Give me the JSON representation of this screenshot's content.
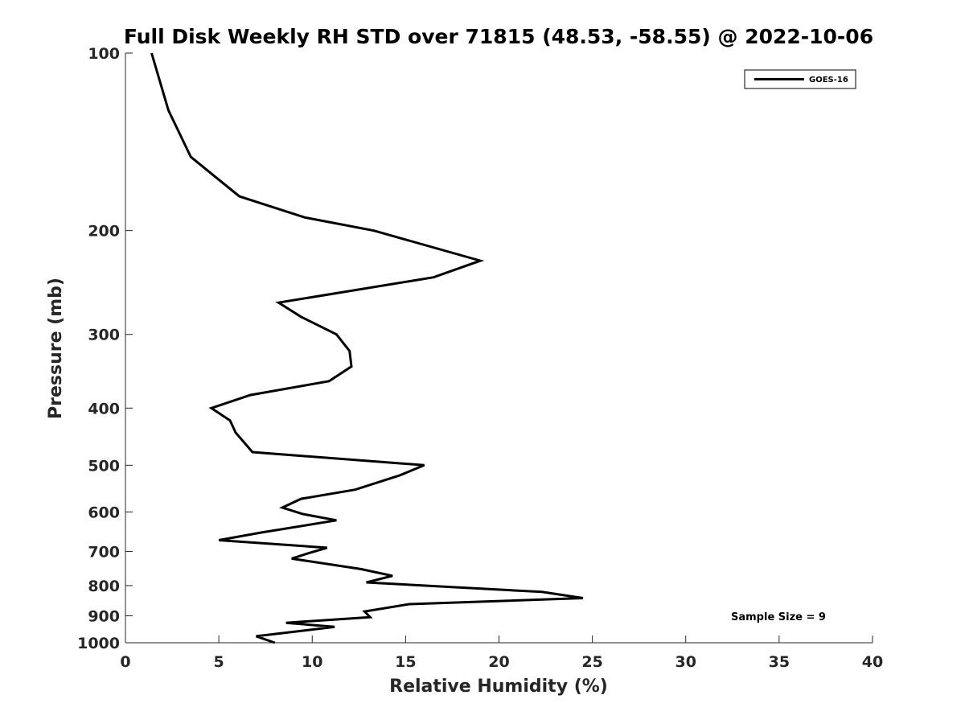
{
  "chart_data": {
    "type": "line",
    "title": "Full Disk Weekly RH STD over 71815 (48.53, -58.55) @ 2022-10-06",
    "xlabel": "Relative Humidity (%)",
    "ylabel": "Pressure (mb)",
    "xlim": [
      0,
      40
    ],
    "ylim": [
      100,
      1000
    ],
    "y_scale": "log",
    "y_reversed": true,
    "grid": false,
    "legend_position": "top-right",
    "x_ticks": [
      "0",
      "5",
      "10",
      "15",
      "20",
      "25",
      "30",
      "35",
      "40"
    ],
    "y_ticks": [
      "100",
      "200",
      "300",
      "400",
      "500",
      "600",
      "700",
      "800",
      "900",
      "1000"
    ],
    "annotation": "Sample Size = 9",
    "series": [
      {
        "name": "GOES-16",
        "color": "#000000",
        "points": [
          [
            1.4,
            100
          ],
          [
            2.3,
            125
          ],
          [
            3.5,
            150
          ],
          [
            6.1,
            175
          ],
          [
            9.6,
            190
          ],
          [
            13.3,
            200
          ],
          [
            19.0,
            225
          ],
          [
            16.5,
            240
          ],
          [
            8.2,
            265
          ],
          [
            9.4,
            280
          ],
          [
            11.3,
            300
          ],
          [
            12.0,
            320
          ],
          [
            12.1,
            340
          ],
          [
            10.9,
            360
          ],
          [
            6.7,
            380
          ],
          [
            4.6,
            400
          ],
          [
            5.6,
            420
          ],
          [
            5.9,
            440
          ],
          [
            6.8,
            475
          ],
          [
            16.0,
            500
          ],
          [
            14.7,
            520
          ],
          [
            12.3,
            550
          ],
          [
            9.4,
            570
          ],
          [
            8.4,
            590
          ],
          [
            9.5,
            605
          ],
          [
            11.3,
            620
          ],
          [
            7.3,
            650
          ],
          [
            5.0,
            670
          ],
          [
            10.8,
            690
          ],
          [
            9.8,
            705
          ],
          [
            8.9,
            720
          ],
          [
            12.6,
            750
          ],
          [
            14.3,
            770
          ],
          [
            12.9,
            790
          ],
          [
            22.3,
            820
          ],
          [
            24.5,
            840
          ],
          [
            15.2,
            860
          ],
          [
            12.8,
            885
          ],
          [
            13.1,
            905
          ],
          [
            8.6,
            925
          ],
          [
            11.2,
            940
          ],
          [
            7.0,
            975
          ],
          [
            8.0,
            1000
          ]
        ]
      }
    ]
  }
}
